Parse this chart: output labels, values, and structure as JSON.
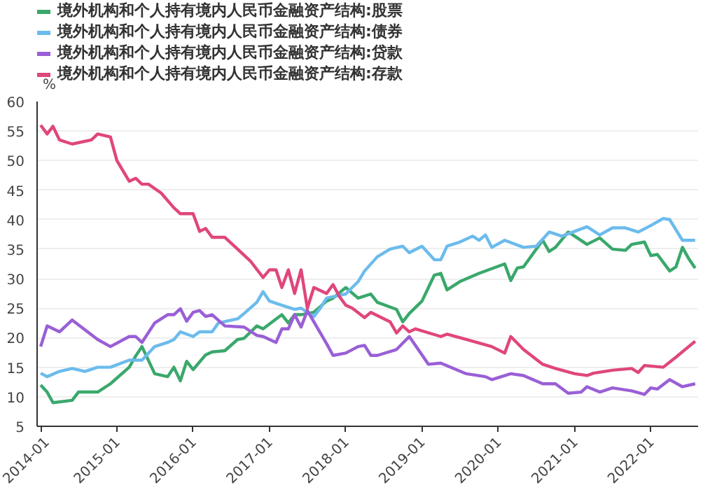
{
  "chart_data": {
    "type": "line",
    "ylabel": "%",
    "legend": "top left",
    "grid": "y",
    "ylim": [
      5,
      60
    ],
    "yticks": [
      5,
      10,
      15,
      20,
      25,
      30,
      35,
      40,
      45,
      50,
      55,
      60
    ],
    "xlim": [
      "2013-12-15",
      "2022-08-15"
    ],
    "xticks": [
      "2014-01",
      "2015-01",
      "2016-01",
      "2017-01",
      "2018-01",
      "2019-01",
      "2020-01",
      "2021-01",
      "2022-01"
    ],
    "series": [
      {
        "name": "境外机构和个人持有境内人民币金融资产结构:股票",
        "color": "#3aa86b",
        "x": [
          "2014-01",
          "2014-02",
          "2014-03",
          "2014-06",
          "2014-07",
          "2014-10",
          "2014-12",
          "2015-03",
          "2015-04",
          "2015-05",
          "2015-07",
          "2015-09",
          "2015-10",
          "2015-11",
          "2015-12",
          "2016-01",
          "2016-03",
          "2016-04",
          "2016-06",
          "2016-08",
          "2016-09",
          "2016-11",
          "2016-12",
          "2017-03",
          "2017-04",
          "2017-05",
          "2017-06",
          "2017-08",
          "2017-10",
          "2017-11",
          "2018-01",
          "2018-03",
          "2018-05",
          "2018-06",
          "2018-09",
          "2018-10",
          "2018-11",
          "2019-01",
          "2019-03",
          "2019-04",
          "2019-05",
          "2019-07",
          "2019-10",
          "2020-02",
          "2020-03",
          "2020-04",
          "2020-05",
          "2020-08",
          "2020-09",
          "2020-10",
          "2020-12",
          "2021-01",
          "2021-03",
          "2021-05",
          "2021-07",
          "2021-09",
          "2021-10",
          "2021-12",
          "2022-01",
          "2022-02",
          "2022-04",
          "2022-05",
          "2022-06",
          "2022-07",
          "2022-08"
        ],
        "values": [
          12,
          10.8,
          9,
          9.4,
          10.8,
          10.8,
          12.2,
          15,
          16.9,
          18.5,
          13.9,
          13.4,
          15,
          12.7,
          16,
          14.6,
          17.1,
          17.6,
          17.8,
          19.7,
          19.9,
          22,
          21.5,
          23.9,
          22.5,
          23.9,
          23.9,
          24.3,
          26.2,
          26.7,
          28.5,
          26.7,
          27.4,
          26,
          24.8,
          22.7,
          24.1,
          26.2,
          30.6,
          30.9,
          28.1,
          29.5,
          30.9,
          32.5,
          29.7,
          31.8,
          32,
          36.5,
          34.6,
          35.3,
          37.9,
          37.2,
          35.8,
          36.9,
          35,
          34.8,
          35.8,
          36.2,
          33.9,
          34.1,
          31.3,
          32,
          35.3,
          33.4,
          31.8
        ]
      },
      {
        "name": "境外机构和个人持有境内人民币金融资产结构:债券",
        "color": "#6cbbec",
        "x": [
          "2014-01",
          "2014-02",
          "2014-04",
          "2014-06",
          "2014-08",
          "2014-10",
          "2014-12",
          "2015-03",
          "2015-05",
          "2015-07",
          "2015-09",
          "2015-10",
          "2015-11",
          "2016-01",
          "2016-02",
          "2016-04",
          "2016-05",
          "2016-08",
          "2016-09",
          "2016-11",
          "2016-12",
          "2017-01",
          "2017-03",
          "2017-05",
          "2017-06",
          "2017-08",
          "2017-09",
          "2017-10",
          "2018-01",
          "2018-03",
          "2018-04",
          "2018-06",
          "2018-08",
          "2018-10",
          "2018-11",
          "2019-01",
          "2019-03",
          "2019-04",
          "2019-05",
          "2019-07",
          "2019-09",
          "2019-10",
          "2019-11",
          "2019-12",
          "2020-02",
          "2020-05",
          "2020-07",
          "2020-09",
          "2020-11",
          "2021-03",
          "2021-05",
          "2021-07",
          "2021-09",
          "2021-11",
          "2022-01",
          "2022-03",
          "2022-04",
          "2022-06",
          "2022-08"
        ],
        "values": [
          14,
          13.4,
          14.3,
          14.8,
          14.3,
          15,
          15,
          16.2,
          16.2,
          18.5,
          19.2,
          19.7,
          21,
          20.2,
          21,
          21,
          22.5,
          23.2,
          24.1,
          26,
          27.8,
          26.2,
          25.5,
          24.8,
          25,
          23.6,
          25,
          26.7,
          27.4,
          29.5,
          31.3,
          33.7,
          35,
          35.5,
          34.4,
          35.5,
          33.2,
          33.2,
          35.5,
          36.2,
          37.2,
          36.5,
          37.4,
          35.3,
          36.5,
          35.3,
          35.5,
          37.9,
          37.2,
          38.8,
          37.4,
          38.6,
          38.6,
          37.9,
          39,
          40.2,
          40,
          36.5,
          36.5
        ]
      },
      {
        "name": "境外机构和个人持有境内人民币金融资产结构:贷款",
        "color": "#9a5fd6",
        "x": [
          "2014-01",
          "2014-02",
          "2014-04",
          "2014-06",
          "2014-10",
          "2014-12",
          "2015-03",
          "2015-04",
          "2015-05",
          "2015-07",
          "2015-09",
          "2015-10",
          "2015-11",
          "2015-12",
          "2016-01",
          "2016-02",
          "2016-03",
          "2016-04",
          "2016-06",
          "2016-09",
          "2016-11",
          "2016-12",
          "2017-02",
          "2017-03",
          "2017-04",
          "2017-05",
          "2017-06",
          "2017-07",
          "2017-08",
          "2017-10",
          "2017-11",
          "2018-01",
          "2018-03",
          "2018-04",
          "2018-05",
          "2018-06",
          "2018-09",
          "2018-11",
          "2019-02",
          "2019-04",
          "2019-08",
          "2019-11",
          "2019-12",
          "2020-03",
          "2020-05",
          "2020-08",
          "2020-10",
          "2020-12",
          "2021-02",
          "2021-03",
          "2021-05",
          "2021-07",
          "2021-10",
          "2021-12",
          "2022-01",
          "2022-02",
          "2022-04",
          "2022-06",
          "2022-08"
        ],
        "values": [
          18.5,
          22,
          21,
          23,
          19.7,
          18.5,
          20.2,
          20.2,
          19.2,
          22.5,
          23.9,
          23.9,
          24.9,
          22.8,
          24.3,
          24.6,
          23.6,
          23.9,
          22,
          21.8,
          20.4,
          20.2,
          19.2,
          21.5,
          21.5,
          23.9,
          21.8,
          24.6,
          22.7,
          19,
          17,
          17.4,
          18.5,
          18.7,
          17,
          17,
          18,
          20.2,
          15.5,
          15.7,
          13.9,
          13.4,
          12.9,
          13.9,
          13.6,
          12.2,
          12.2,
          10.6,
          10.8,
          11.7,
          10.8,
          11.5,
          11,
          10.4,
          11.5,
          11.3,
          12.9,
          11.7,
          12.2
        ]
      },
      {
        "name": "境外机构和个人持有境内人民币金融资产结构:存款",
        "color": "#e0467c",
        "x": [
          "2014-01",
          "2014-02",
          "2014-03",
          "2014-04",
          "2014-06",
          "2014-09",
          "2014-10",
          "2014-12",
          "2015-01",
          "2015-03",
          "2015-04",
          "2015-05",
          "2015-06",
          "2015-08",
          "2015-10",
          "2015-11",
          "2016-01",
          "2016-02",
          "2016-03",
          "2016-04",
          "2016-06",
          "2016-08",
          "2016-10",
          "2016-12",
          "2017-01",
          "2017-02",
          "2017-03",
          "2017-04",
          "2017-05",
          "2017-06",
          "2017-07",
          "2017-08",
          "2017-09",
          "2017-10",
          "2017-11",
          "2017-12",
          "2018-01",
          "2018-02",
          "2018-04",
          "2018-05",
          "2018-08",
          "2018-09",
          "2018-10",
          "2018-11",
          "2018-12",
          "2019-04",
          "2019-05",
          "2019-08",
          "2019-12",
          "2020-02",
          "2020-03",
          "2020-05",
          "2020-08",
          "2020-10",
          "2021-01",
          "2021-03",
          "2021-04",
          "2021-07",
          "2021-10",
          "2021-11",
          "2021-12",
          "2022-03",
          "2022-05",
          "2022-07",
          "2022-08"
        ],
        "values": [
          56,
          54.5,
          55.8,
          53.5,
          52.8,
          53.5,
          54.5,
          54,
          50,
          46.5,
          47,
          46,
          46,
          44.5,
          42,
          41,
          41,
          38,
          38.5,
          37,
          37,
          35,
          33,
          30.2,
          31.5,
          31.5,
          28.5,
          31.5,
          27.5,
          31.5,
          25,
          28.5,
          28,
          27.5,
          29,
          27,
          25.5,
          25,
          23.4,
          24.3,
          22.7,
          20.8,
          22,
          21,
          21.5,
          20.2,
          20.6,
          19.7,
          18.5,
          17.4,
          20.2,
          18,
          15.5,
          14.8,
          13.9,
          13.6,
          14,
          14.5,
          14.8,
          14.1,
          15.3,
          15,
          16.7,
          18.5,
          19.4
        ]
      }
    ]
  }
}
